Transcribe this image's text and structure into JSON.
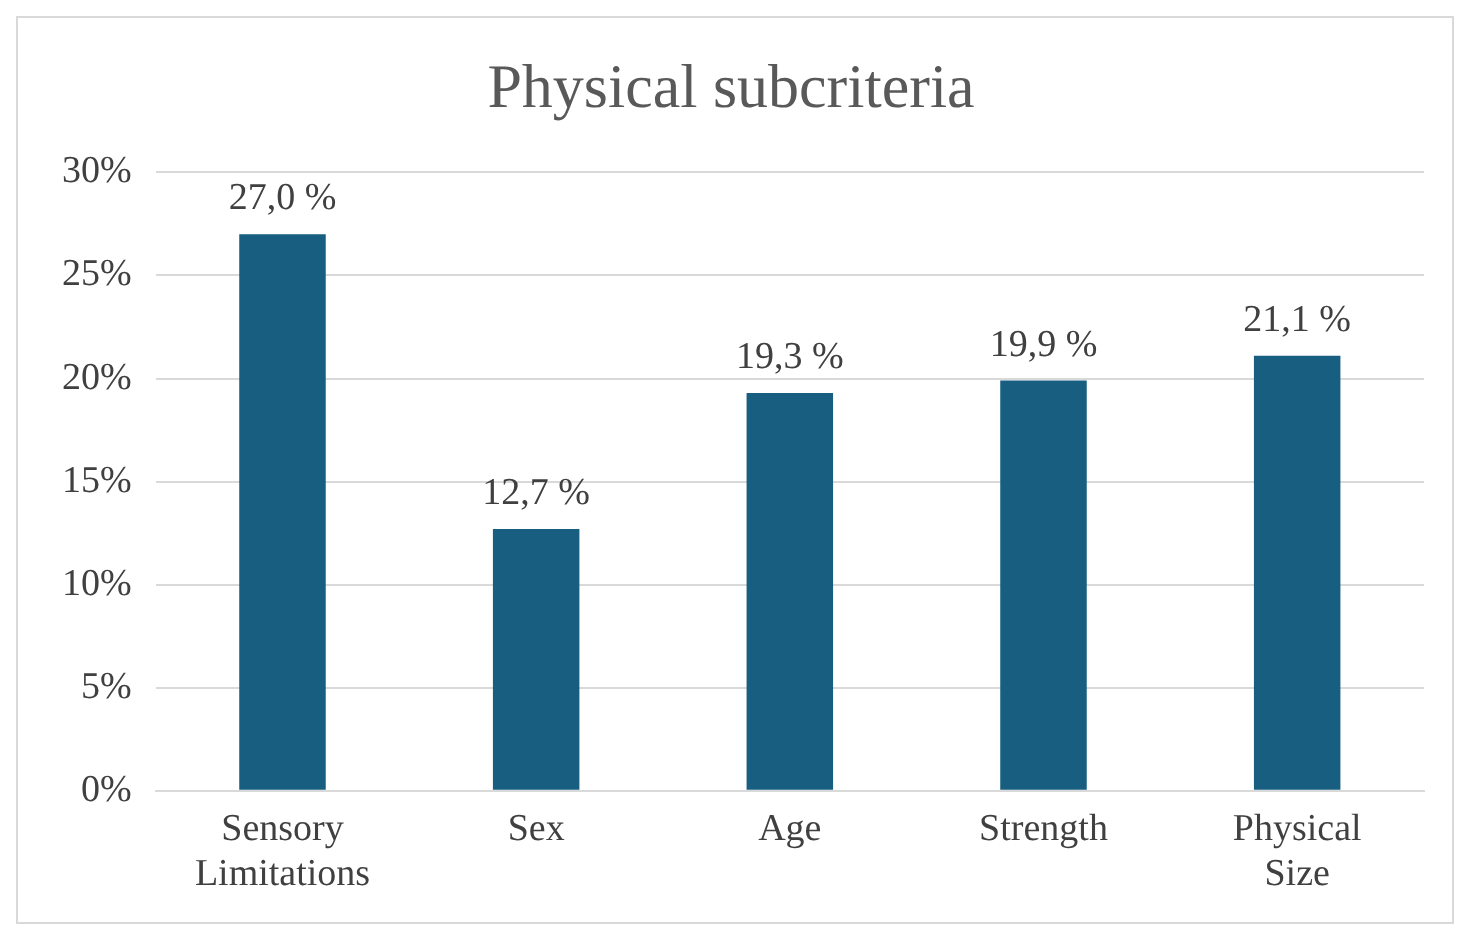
{
  "chart_data": {
    "type": "bar",
    "title": "Physical subcriteria",
    "categories": [
      "Sensory Limitations",
      "Sex",
      "Age",
      "Strength",
      "Physical Size"
    ],
    "values": [
      27.0,
      12.7,
      19.3,
      19.9,
      21.1
    ],
    "value_labels": [
      "27,0 %",
      "12,7 %",
      "19,3 %",
      "19,9 %",
      "21,1 %"
    ],
    "color": "#175e80",
    "ylim": [
      0,
      30
    ],
    "yticks": [
      {
        "value": 0,
        "label": "0%"
      },
      {
        "value": 5,
        "label": "5%"
      },
      {
        "value": 10,
        "label": "10%"
      },
      {
        "value": 15,
        "label": "15%"
      },
      {
        "value": 20,
        "label": "20%"
      },
      {
        "value": 25,
        "label": "25%"
      },
      {
        "value": 30,
        "label": "30%"
      }
    ],
    "grid": "y",
    "legend": false
  }
}
